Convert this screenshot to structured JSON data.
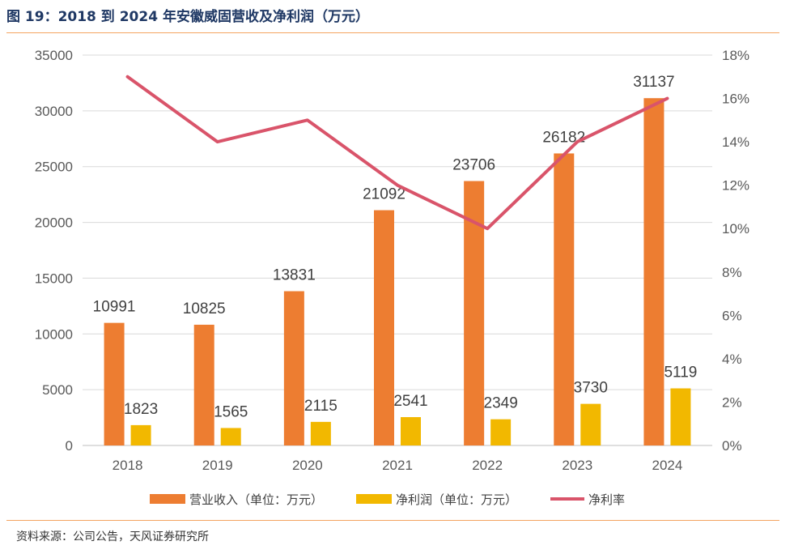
{
  "header": {
    "title": "图 19：2018 到 2024 年安徽威固营收及净利润（万元）"
  },
  "footer": {
    "source": "资料来源：公司公告，天风证券研究所"
  },
  "colors": {
    "revenue": "#ED7D31",
    "profit": "#F2B800",
    "margin": "#D9546A",
    "rule": "#F4A460"
  },
  "chart_data": {
    "type": "bar",
    "categories": [
      "2018",
      "2019",
      "2020",
      "2021",
      "2022",
      "2023",
      "2024"
    ],
    "series": [
      {
        "name": "营业收入（单位：万元）",
        "type": "bar",
        "axis": "left",
        "values": [
          10991,
          10825,
          13831,
          21092,
          23706,
          26182,
          31137
        ],
        "labels": [
          "10991",
          "10825",
          "13831",
          "21092",
          "23706",
          "26182",
          "31137"
        ]
      },
      {
        "name": "净利润（单位：万元）",
        "type": "bar",
        "axis": "left",
        "values": [
          1823,
          1565,
          2115,
          2541,
          2349,
          3730,
          5119
        ],
        "labels": [
          "1823",
          "1565",
          "2115",
          "2541",
          "2349",
          "3730",
          "5119"
        ]
      },
      {
        "name": "净利率",
        "type": "line",
        "axis": "right",
        "values": [
          17.0,
          14.0,
          15.0,
          12.0,
          10.0,
          14.0,
          16.0
        ]
      }
    ],
    "y_left": {
      "ylim": [
        0,
        35000
      ],
      "ticks": [
        "0",
        "5000",
        "10000",
        "15000",
        "20000",
        "25000",
        "30000",
        "35000"
      ]
    },
    "y_right": {
      "ylim": [
        0,
        18
      ],
      "ticks": [
        "0%",
        "2%",
        "4%",
        "6%",
        "8%",
        "10%",
        "12%",
        "14%",
        "16%",
        "18%"
      ]
    },
    "grid": "horizontal",
    "legend": "bottom"
  }
}
